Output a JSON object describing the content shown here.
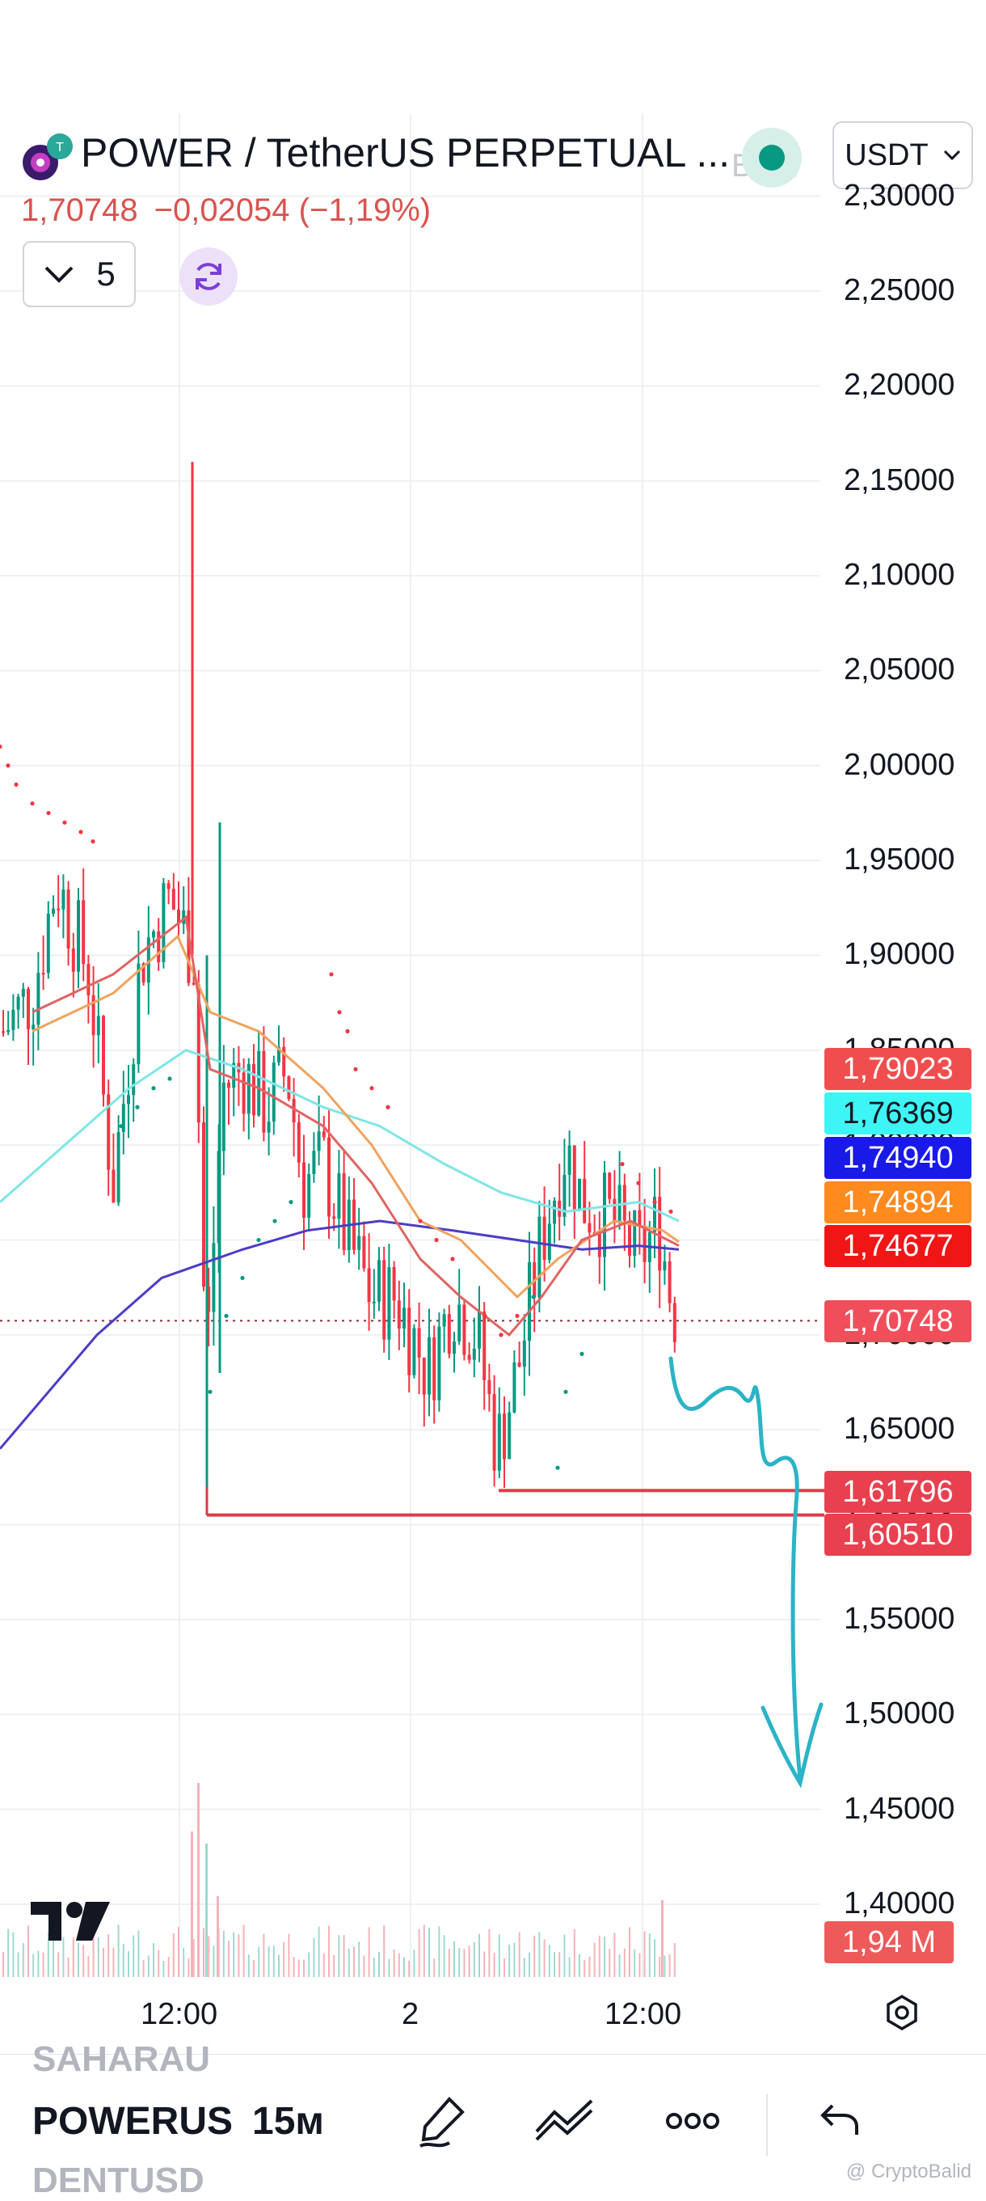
{
  "header": {
    "title": "POWER / TetherUS PERPETUAL ...",
    "last_price": "1,70748",
    "change": "−0,02054 (−1,19%)",
    "indicator_count": "5",
    "currency_select": "USDT",
    "ghost_text": "B.22"
  },
  "colors": {
    "up": "#089981",
    "down": "#f23645",
    "price_down_text": "#d9534f",
    "ma_blue": "#4a3ec5",
    "ma_cyan": "#7fe6e6",
    "ma_orange": "#f0a35e",
    "ma_red": "#e06464",
    "support_line": "#dd3c4a",
    "drawing_arrow": "#2cb3c6"
  },
  "price_axis": {
    "labels": [
      "2,30000",
      "2,25000",
      "2,20000",
      "2,15000",
      "2,10000",
      "2,05000",
      "2,00000",
      "1,95000",
      "1,90000",
      "1,85000",
      "1,80000",
      "1,75000",
      "1,70000",
      "1,65000",
      "1,60000",
      "1,55000",
      "1,50000",
      "1,45000",
      "1,40000"
    ],
    "range": [
      1.38,
      2.31
    ]
  },
  "price_tags": [
    {
      "value": "1,79023",
      "bg": "#f04e4e",
      "fg": "#ffffff"
    },
    {
      "value": "1,76369",
      "bg": "#3df5f5",
      "fg": "#131722"
    },
    {
      "value": "1,74940",
      "bg": "#1a1ae6",
      "fg": "#ffffff"
    },
    {
      "value": "1,74894",
      "bg": "#ff8a1e",
      "fg": "#ffffff"
    },
    {
      "value": "1,74677",
      "bg": "#f01616",
      "fg": "#ffffff"
    },
    {
      "value": "1,70748",
      "bg": "#f04e5b",
      "fg": "#ffffff"
    },
    {
      "value": "1,61796",
      "bg": "#e8404f",
      "fg": "#ffffff"
    },
    {
      "value": "1,60510",
      "bg": "#e8404f",
      "fg": "#ffffff"
    },
    {
      "value": "1,94 M",
      "bg": "#ee5a5a",
      "fg": "#ffffff"
    }
  ],
  "time_axis": [
    "12:00",
    "2",
    "12:00"
  ],
  "support_levels": [
    1.61796,
    1.6051
  ],
  "toolbar": {
    "symbol": "POWERUS",
    "interval": "15м",
    "ghost_above": "SAHARAU",
    "ghost_below": "DENTUSD"
  },
  "watermark": "@ CryptoBalid",
  "icons": {
    "logo": "power-token-logo",
    "refresh": "refresh-icon",
    "collapse": "chevron-down-icon",
    "settings": "settings-hexagon-icon",
    "draw": "pencil-icon",
    "trend": "trend-lines-icon",
    "more": "more-dots-icon",
    "undo": "undo-icon",
    "tv": "tradingview-logo"
  }
}
